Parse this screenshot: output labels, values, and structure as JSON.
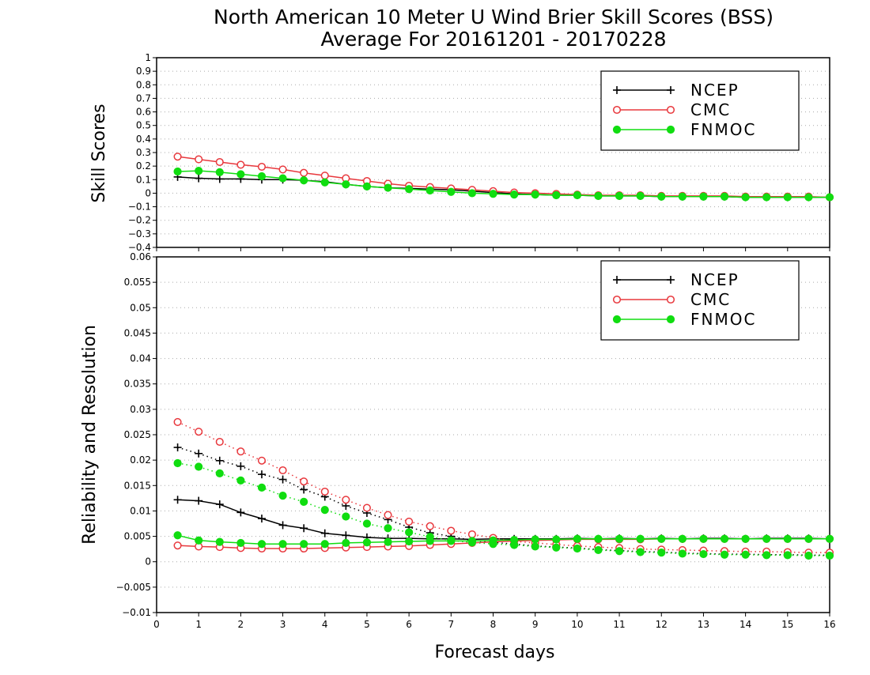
{
  "header": {
    "title_line1": "North American 10 Meter U Wind Brier Skill Scores (BSS)",
    "title_line2": "Average For 20161201 - 20170228"
  },
  "colors": {
    "NCEP": "#000000",
    "CMC": "#e8383d",
    "FNMOC": "#10dd10",
    "grid": "#aaaaaa"
  },
  "chart_data": [
    {
      "type": "line",
      "ylabel": "Skill Scores",
      "xlabel": "",
      "xlim": [
        0,
        16
      ],
      "ylim": [
        -0.4,
        1
      ],
      "x_ticks": [
        "0",
        "1",
        "2",
        "3",
        "4",
        "5",
        "6",
        "7",
        "8",
        "9",
        "10",
        "11",
        "12",
        "13",
        "14",
        "15",
        "16"
      ],
      "y_ticks": [
        "1",
        "0.9",
        "0.8",
        "0.7",
        "0.6",
        "0.5",
        "0.4",
        "0.3",
        "0.2",
        "0.1",
        "0",
        "−0.1",
        "−0.2",
        "−0.3",
        "−0.4"
      ],
      "grid": true,
      "legend_position": "top-right",
      "x": [
        0.5,
        1,
        1.5,
        2,
        2.5,
        3,
        3.5,
        4,
        4.5,
        5,
        5.5,
        6,
        6.5,
        7,
        7.5,
        8,
        8.5,
        9,
        9.5,
        10,
        10.5,
        11,
        11.5,
        12,
        12.5,
        13,
        13.5,
        14,
        14.5,
        15,
        15.5,
        16
      ],
      "series": [
        {
          "name": "NCEP",
          "marker": "plus",
          "style": "solid",
          "values": [
            0.12,
            0.11,
            0.105,
            0.105,
            0.1,
            0.1,
            0.095,
            0.085,
            0.065,
            0.05,
            0.04,
            0.035,
            0.03,
            0.025,
            0.015,
            0.005,
            -0.005,
            -0.01,
            -0.015,
            -0.015,
            -0.02,
            -0.02,
            -0.02,
            -0.025,
            -0.025,
            -0.025,
            -0.025,
            -0.03,
            -0.03,
            -0.03,
            -0.03,
            -0.03
          ]
        },
        {
          "name": "CMC",
          "marker": "open-circle",
          "style": "solid",
          "values": [
            0.27,
            0.25,
            0.23,
            0.21,
            0.195,
            0.175,
            0.15,
            0.13,
            0.11,
            0.09,
            0.07,
            0.055,
            0.045,
            0.035,
            0.025,
            0.015,
            0.005,
            0.0,
            -0.005,
            -0.01,
            -0.015,
            -0.015,
            -0.015,
            -0.02,
            -0.02,
            -0.02,
            -0.02,
            -0.025,
            -0.025,
            -0.025,
            -0.025,
            -0.03
          ]
        },
        {
          "name": "FNMOC",
          "marker": "filled-circle",
          "style": "solid",
          "values": [
            0.16,
            0.165,
            0.155,
            0.14,
            0.125,
            0.11,
            0.095,
            0.08,
            0.065,
            0.05,
            0.04,
            0.03,
            0.02,
            0.01,
            0.0,
            -0.005,
            -0.01,
            -0.01,
            -0.015,
            -0.015,
            -0.02,
            -0.02,
            -0.02,
            -0.025,
            -0.025,
            -0.025,
            -0.025,
            -0.03,
            -0.03,
            -0.03,
            -0.03,
            -0.03
          ]
        }
      ]
    },
    {
      "type": "line",
      "ylabel": "Reliability and Resolution",
      "xlabel": "Forecast days",
      "xlim": [
        0,
        16
      ],
      "ylim": [
        -0.01,
        0.06
      ],
      "x_ticks": [
        "0",
        "1",
        "2",
        "3",
        "4",
        "5",
        "6",
        "7",
        "8",
        "9",
        "10",
        "11",
        "12",
        "13",
        "14",
        "15",
        "16"
      ],
      "y_ticks": [
        "0.06",
        "0.055",
        "0.05",
        "0.045",
        "0.04",
        "0.035",
        "0.03",
        "0.025",
        "0.02",
        "0.015",
        "0.01",
        "0.005",
        "0",
        "−0.005",
        "−0.01"
      ],
      "grid": true,
      "legend_position": "top-right",
      "x": [
        0.5,
        1,
        1.5,
        2,
        2.5,
        3,
        3.5,
        4,
        4.5,
        5,
        5.5,
        6,
        6.5,
        7,
        7.5,
        8,
        8.5,
        9,
        9.5,
        10,
        10.5,
        11,
        11.5,
        12,
        12.5,
        13,
        13.5,
        14,
        14.5,
        15,
        15.5,
        16
      ],
      "series": [
        {
          "name": "NCEP",
          "marker": "plus",
          "style": "solid",
          "values": [
            0.0122,
            0.012,
            0.0113,
            0.0097,
            0.0085,
            0.0072,
            0.0066,
            0.0056,
            0.0052,
            0.0048,
            0.0046,
            0.0046,
            0.0045,
            0.0045,
            0.0044,
            0.0045,
            0.0045,
            0.0045,
            0.0045,
            0.0046,
            0.0045,
            0.0046,
            0.0045,
            0.0046,
            0.0045,
            0.0046,
            0.0046,
            0.0045,
            0.0046,
            0.0046,
            0.0046,
            0.0045
          ]
        },
        {
          "name": "NCEP",
          "marker": "plus",
          "style": "dotted",
          "values": [
            0.0225,
            0.0213,
            0.0199,
            0.0188,
            0.0172,
            0.0162,
            0.0142,
            0.0128,
            0.011,
            0.0096,
            0.0083,
            0.0068,
            0.0057,
            0.005,
            0.0042,
            0.0038,
            0.0035,
            0.0031,
            0.0029,
            0.0027,
            0.0024,
            0.0022,
            0.002,
            0.0019,
            0.0017,
            0.0016,
            0.0015,
            0.0015,
            0.0014,
            0.0014,
            0.0013,
            0.0013
          ]
        },
        {
          "name": "CMC",
          "marker": "open-circle",
          "style": "solid",
          "values": [
            0.0032,
            0.003,
            0.0029,
            0.0027,
            0.0026,
            0.0026,
            0.0026,
            0.0027,
            0.0028,
            0.0029,
            0.003,
            0.0031,
            0.0033,
            0.0035,
            0.0037,
            0.0039,
            0.0041,
            0.0042,
            0.0043,
            0.0044,
            0.0044,
            0.0044,
            0.0044,
            0.0045,
            0.0045,
            0.0045,
            0.0045,
            0.0045,
            0.0045,
            0.0045,
            0.0045,
            0.0045
          ]
        },
        {
          "name": "CMC",
          "marker": "open-circle",
          "style": "dotted",
          "values": [
            0.0275,
            0.0256,
            0.0236,
            0.0217,
            0.0199,
            0.018,
            0.0158,
            0.0138,
            0.0122,
            0.0106,
            0.0092,
            0.0079,
            0.007,
            0.0061,
            0.0054,
            0.0047,
            0.004,
            0.0037,
            0.0034,
            0.0031,
            0.0029,
            0.0027,
            0.0025,
            0.0024,
            0.0023,
            0.0022,
            0.0021,
            0.002,
            0.002,
            0.0019,
            0.0018,
            0.0018
          ]
        },
        {
          "name": "FNMOC",
          "marker": "filled-circle",
          "style": "solid",
          "values": [
            0.0052,
            0.0042,
            0.0039,
            0.0037,
            0.0035,
            0.0035,
            0.0035,
            0.0035,
            0.0037,
            0.0038,
            0.0039,
            0.004,
            0.0041,
            0.0041,
            0.0041,
            0.0042,
            0.0043,
            0.0044,
            0.0044,
            0.0045,
            0.0045,
            0.0045,
            0.0045,
            0.0045,
            0.0045,
            0.0045,
            0.0045,
            0.0045,
            0.0045,
            0.0045,
            0.0045,
            0.0045
          ]
        },
        {
          "name": "FNMOC",
          "marker": "filled-circle",
          "style": "dotted",
          "values": [
            0.0194,
            0.0187,
            0.0174,
            0.016,
            0.0146,
            0.013,
            0.0118,
            0.0102,
            0.0089,
            0.0075,
            0.0066,
            0.0058,
            0.0049,
            0.0042,
            0.0038,
            0.0035,
            0.0033,
            0.003,
            0.0028,
            0.0026,
            0.0023,
            0.0021,
            0.0019,
            0.0018,
            0.0016,
            0.0015,
            0.0014,
            0.0014,
            0.0013,
            0.0013,
            0.0012,
            0.0012
          ]
        }
      ]
    }
  ]
}
